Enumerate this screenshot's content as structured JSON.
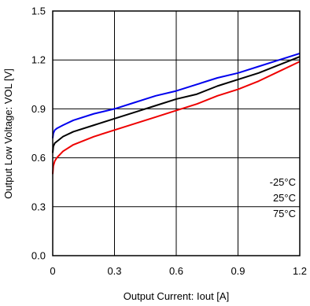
{
  "chart_data": {
    "type": "line",
    "title": "",
    "xlabel": "Output Current: Iout [A]",
    "ylabel": "Output Low Voltage: VOL [V]",
    "xlim": [
      0,
      1.2
    ],
    "ylim": [
      0,
      1.5
    ],
    "x_ticks": [
      "0",
      "0.3",
      "0.6",
      "0.9",
      "1.2"
    ],
    "y_ticks": [
      "0.0",
      "0.3",
      "0.6",
      "0.9",
      "1.2",
      "1.5"
    ],
    "grid": true,
    "legend_position": "lower-right",
    "series": [
      {
        "name": "-25°C",
        "color": "#0000ee",
        "x": [
          0,
          0.003,
          0.01,
          0.02,
          0.05,
          0.1,
          0.2,
          0.3,
          0.4,
          0.5,
          0.6,
          0.7,
          0.8,
          0.9,
          1.0,
          1.1,
          1.2
        ],
        "y": [
          0.72,
          0.75,
          0.77,
          0.78,
          0.8,
          0.83,
          0.87,
          0.9,
          0.94,
          0.98,
          1.01,
          1.05,
          1.09,
          1.12,
          1.16,
          1.2,
          1.24
        ]
      },
      {
        "name": "25°C",
        "color": "#000000",
        "x": [
          0,
          0.003,
          0.01,
          0.02,
          0.05,
          0.1,
          0.2,
          0.3,
          0.4,
          0.5,
          0.6,
          0.7,
          0.8,
          0.9,
          1.0,
          1.1,
          1.2
        ],
        "y": [
          0.63,
          0.67,
          0.69,
          0.7,
          0.73,
          0.76,
          0.8,
          0.84,
          0.88,
          0.92,
          0.96,
          0.99,
          1.04,
          1.08,
          1.12,
          1.17,
          1.22
        ]
      },
      {
        "name": "75°C",
        "color": "#ee0000",
        "x": [
          0,
          0.003,
          0.01,
          0.02,
          0.05,
          0.1,
          0.2,
          0.3,
          0.4,
          0.5,
          0.6,
          0.7,
          0.8,
          0.9,
          1.0,
          1.1,
          1.2
        ],
        "y": [
          0.5,
          0.55,
          0.58,
          0.6,
          0.64,
          0.68,
          0.73,
          0.77,
          0.81,
          0.85,
          0.89,
          0.93,
          0.98,
          1.02,
          1.07,
          1.13,
          1.19
        ]
      }
    ],
    "legend": [
      "-25°C",
      "25°C",
      "75°C"
    ]
  }
}
